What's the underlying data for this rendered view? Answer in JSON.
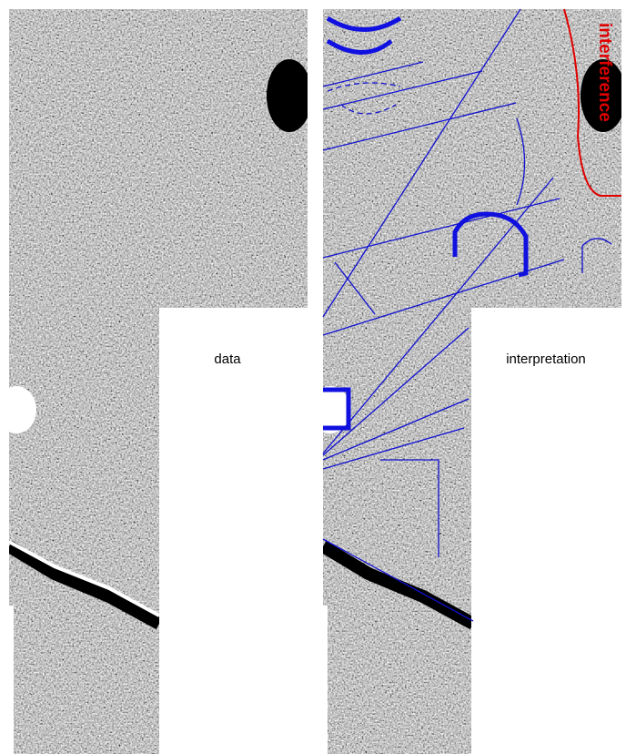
{
  "panels": {
    "data_label": "data",
    "interpretation_label": "interpretation",
    "interference_label": "interference"
  }
}
